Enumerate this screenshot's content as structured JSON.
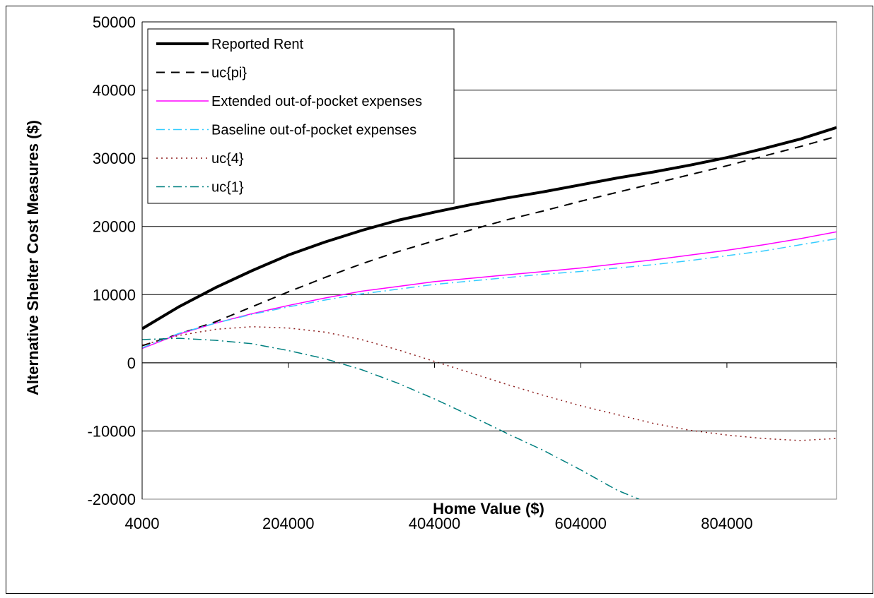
{
  "chart_data": {
    "type": "line",
    "title": "",
    "xlabel": "Home Value ($)",
    "ylabel": "Alternative Shelter Cost Measures ($)",
    "xlim": [
      4000,
      954000
    ],
    "ylim": [
      -20000,
      50000
    ],
    "xticks": [
      4000,
      204000,
      404000,
      604000,
      804000
    ],
    "yticks": [
      -20000,
      -10000,
      0,
      10000,
      20000,
      30000,
      40000,
      50000
    ],
    "grid": "horizontal",
    "legend_position": "top-left",
    "series": [
      {
        "name": "Reported Rent",
        "color": "#000000",
        "dash": "solid",
        "width": 4,
        "x": [
          4000,
          54000,
          104000,
          154000,
          204000,
          254000,
          304000,
          354000,
          404000,
          454000,
          504000,
          554000,
          604000,
          654000,
          704000,
          754000,
          804000,
          854000,
          904000,
          954000
        ],
        "y": [
          5000,
          8200,
          11000,
          13500,
          15800,
          17700,
          19400,
          20900,
          22100,
          23200,
          24200,
          25100,
          26100,
          27100,
          28000,
          29000,
          30100,
          31400,
          32800,
          34500
        ]
      },
      {
        "name": "uc{pi}",
        "color": "#000000",
        "dash": "dashed",
        "width": 2,
        "x": [
          4000,
          54000,
          104000,
          154000,
          204000,
          254000,
          304000,
          354000,
          404000,
          454000,
          504000,
          554000,
          604000,
          654000,
          704000,
          754000,
          804000,
          854000,
          904000,
          954000
        ],
        "y": [
          2500,
          4200,
          6000,
          8200,
          10400,
          12500,
          14500,
          16300,
          17900,
          19500,
          21000,
          22300,
          23700,
          25000,
          26300,
          27600,
          28900,
          30300,
          31700,
          33200
        ]
      },
      {
        "name": "Extended out-of-pocket expenses",
        "color": "#ff00ff",
        "dash": "solid",
        "width": 1.5,
        "x": [
          4000,
          54000,
          104000,
          154000,
          204000,
          254000,
          304000,
          354000,
          404000,
          454000,
          504000,
          554000,
          604000,
          654000,
          704000,
          754000,
          804000,
          854000,
          904000,
          954000
        ],
        "y": [
          2100,
          4200,
          5800,
          7200,
          8400,
          9500,
          10500,
          11200,
          11900,
          12400,
          12900,
          13400,
          13900,
          14500,
          15100,
          15800,
          16500,
          17300,
          18200,
          19200
        ]
      },
      {
        "name": "Baseline out-of-pocket expenses",
        "color": "#33ccff",
        "dash": "dashdot",
        "width": 1.5,
        "x": [
          4000,
          54000,
          104000,
          154000,
          204000,
          254000,
          304000,
          354000,
          404000,
          454000,
          504000,
          554000,
          604000,
          654000,
          704000,
          754000,
          804000,
          854000,
          904000,
          954000
        ],
        "y": [
          2200,
          4300,
          5800,
          7100,
          8200,
          9200,
          10100,
          10800,
          11500,
          12000,
          12500,
          13000,
          13400,
          13900,
          14400,
          15000,
          15700,
          16400,
          17300,
          18200
        ]
      },
      {
        "name": "uc{4}",
        "color": "#8b1a1a",
        "dash": "dotted",
        "width": 1.5,
        "x": [
          4000,
          54000,
          104000,
          154000,
          204000,
          254000,
          304000,
          354000,
          404000,
          454000,
          504000,
          554000,
          604000,
          654000,
          704000,
          754000,
          804000,
          854000,
          904000,
          954000
        ],
        "y": [
          2600,
          4000,
          4900,
          5300,
          5100,
          4500,
          3400,
          1900,
          200,
          -1500,
          -3200,
          -4800,
          -6300,
          -7600,
          -8900,
          -9900,
          -10600,
          -11100,
          -11400,
          -11100
        ]
      },
      {
        "name": "uc{1}",
        "color": "#008080",
        "dash": "dashdot",
        "width": 1.5,
        "x": [
          4000,
          54000,
          104000,
          154000,
          204000,
          254000,
          304000,
          354000,
          404000,
          454000,
          504000,
          554000,
          604000,
          654000,
          684000
        ],
        "y": [
          3400,
          3600,
          3300,
          2800,
          1800,
          600,
          -1000,
          -3000,
          -5300,
          -7800,
          -10400,
          -12900,
          -15700,
          -18700,
          -20000
        ]
      }
    ]
  }
}
